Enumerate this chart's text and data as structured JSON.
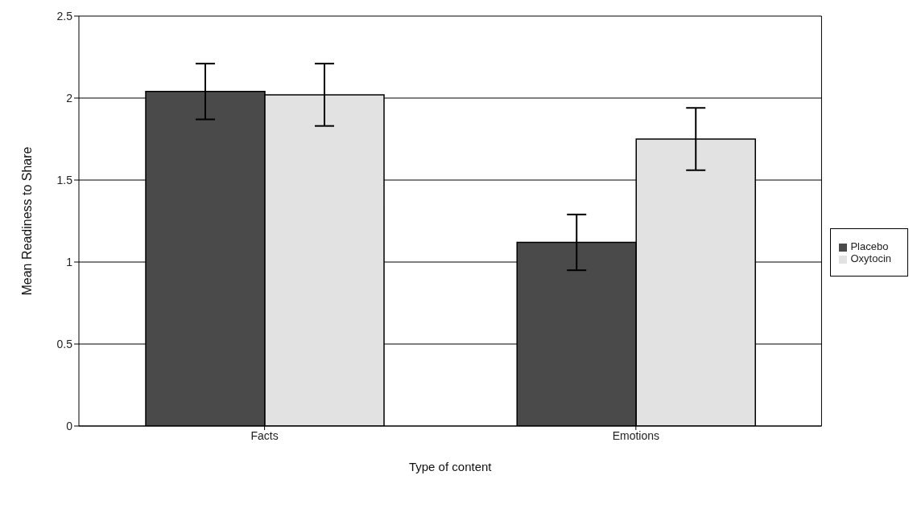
{
  "chart_data": {
    "type": "bar",
    "xlabel": "Type of content",
    "ylabel": "Mean Readiness to Share",
    "categories": [
      "Facts",
      "Emotions"
    ],
    "series": [
      {
        "name": "Placebo",
        "color": "#4a4a4a",
        "values": [
          2.04,
          1.12
        ],
        "errors": [
          0.17,
          0.17
        ]
      },
      {
        "name": "Oxytocin",
        "color": "#e2e2e2",
        "values": [
          2.02,
          1.75
        ],
        "errors": [
          0.19,
          0.19
        ]
      }
    ],
    "ylim": [
      0,
      2.5
    ],
    "yticks": [
      0,
      0.5,
      1,
      1.5,
      2,
      2.5
    ],
    "grid": "y",
    "legend": "right"
  }
}
